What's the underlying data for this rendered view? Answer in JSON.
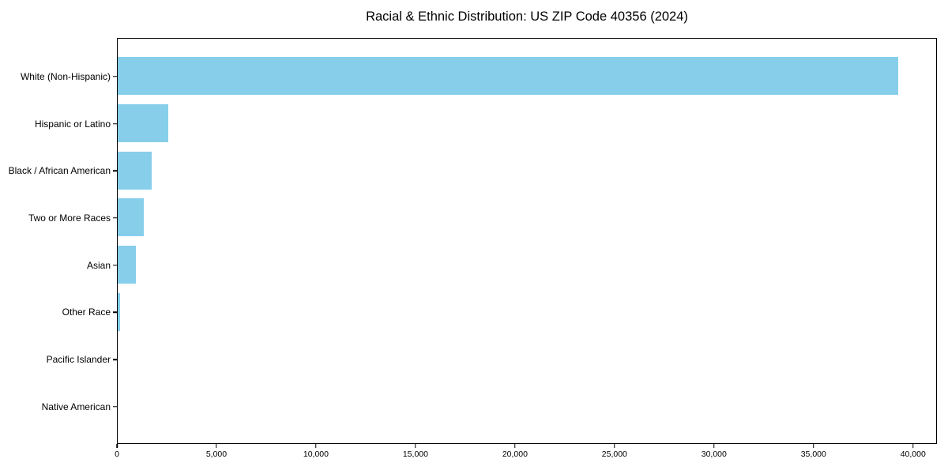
{
  "page": {
    "background": "#ffffff"
  },
  "chart_data": {
    "type": "bar",
    "orientation": "horizontal",
    "title": "Racial & Ethnic Distribution: US ZIP Code 40356 (2024)",
    "categories": [
      "White (Non-Hispanic)",
      "Hispanic or Latino",
      "Black / African American",
      "Two or More Races",
      "Asian",
      "Other Race",
      "Pacific Islander",
      "Native American"
    ],
    "values": [
      39200,
      2550,
      1700,
      1300,
      900,
      130,
      0,
      0
    ],
    "xlabel": "",
    "ylabel": "",
    "xlim": [
      0,
      41200
    ],
    "x_ticks": [
      0,
      5000,
      10000,
      15000,
      20000,
      25000,
      30000,
      35000,
      40000
    ],
    "x_tick_labels": [
      "0",
      "5,000",
      "10,000",
      "15,000",
      "20,000",
      "25,000",
      "30,000",
      "35,000",
      "40,000"
    ],
    "grid": false,
    "legend_position": "none",
    "bar_color": "#87CEEB",
    "axis_color": "#000000",
    "text_color": "#000000"
  }
}
